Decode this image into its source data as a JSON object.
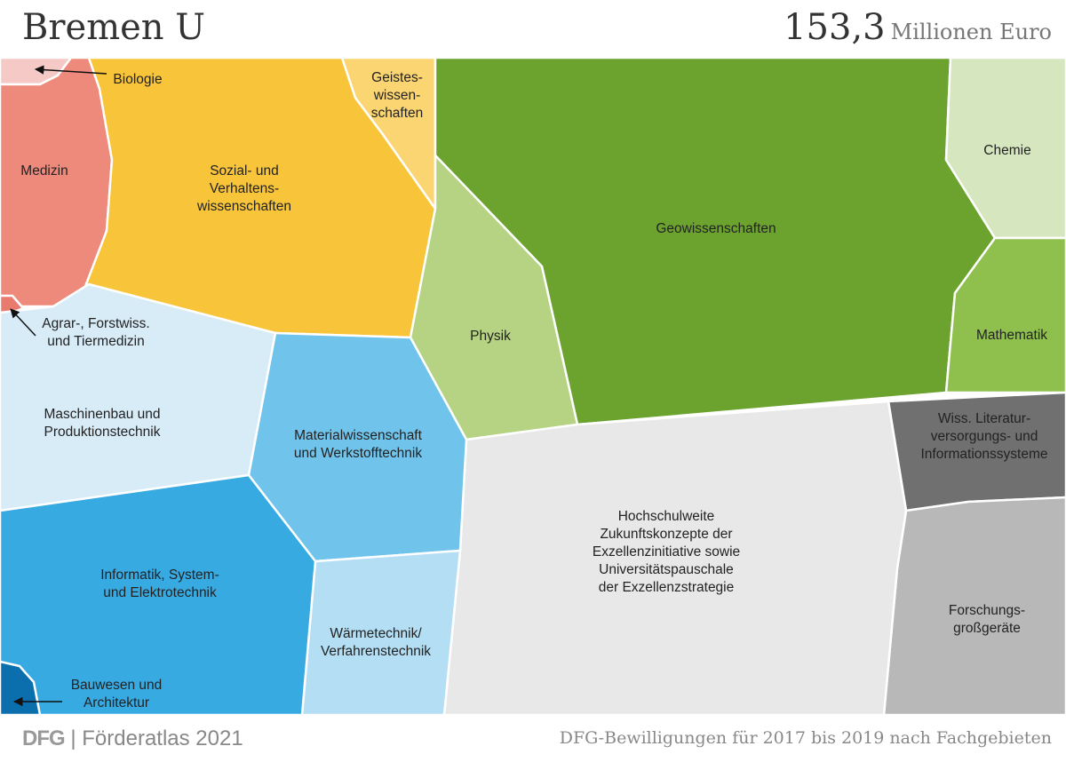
{
  "header": {
    "title": "Bremen U",
    "total_value": "153,3",
    "total_unit": "Millionen Euro"
  },
  "footer": {
    "logo": "DFG",
    "separator": "|",
    "publication": "Förderatlas 2021",
    "caption": "DFG-Bewilligungen für 2017 bis 2019 nach Fachgebieten"
  },
  "chart_data": {
    "type": "voronoi-treemap",
    "title": "Bremen U",
    "total": "153,3 Millionen Euro",
    "cells": [
      {
        "label": [
          "Biologie"
        ],
        "color": "#f5c9c6"
      },
      {
        "label": [
          "Medizin"
        ],
        "color": "#ee8a7c"
      },
      {
        "label": [
          "Agrar-, Forstwiss.",
          "und Tiermedizin"
        ],
        "color": "#e87a6e"
      },
      {
        "label": [
          "Sozial- und",
          "Verhaltens-",
          "wissenschaften"
        ],
        "color": "#f8c53a"
      },
      {
        "label": [
          "Geistes-",
          "wissen-",
          "schaften"
        ],
        "color": "#fbd572"
      },
      {
        "label": [
          "Geowissenschaften"
        ],
        "color": "#6ba32e"
      },
      {
        "label": [
          "Physik"
        ],
        "color": "#b5d383"
      },
      {
        "label": [
          "Chemie"
        ],
        "color": "#d6e7c0"
      },
      {
        "label": [
          "Mathematik"
        ],
        "color": "#8fc04e"
      },
      {
        "label": [
          "Wiss. Literatur-",
          "versorgungs- und",
          "Informationssysteme"
        ],
        "color": "#707070"
      },
      {
        "label": [
          "Forschungs-",
          "großgeräte"
        ],
        "color": "#b8b8b8"
      },
      {
        "label": [
          "Hochschulweite",
          "Zukunftskonzepte der",
          "Exzellenzinitiative sowie",
          "Universitätspauschale",
          "der Exzellenzstrategie"
        ],
        "color": "#e8e8e8"
      },
      {
        "label": [
          "Maschinenbau und",
          "Produktionstechnik"
        ],
        "color": "#d8ecf8"
      },
      {
        "label": [
          "Materialwissenschaft",
          "und Werkstofftechnik"
        ],
        "color": "#70c4ec"
      },
      {
        "label": [
          "Wärmetechnik/",
          "Verfahrenstechnik"
        ],
        "color": "#b3def4"
      },
      {
        "label": [
          "Informatik, System-",
          "und Elektrotechnik"
        ],
        "color": "#38aae2"
      },
      {
        "label": [
          "Bauwesen und",
          "Architektur"
        ],
        "color": "#0b6fae"
      }
    ]
  }
}
